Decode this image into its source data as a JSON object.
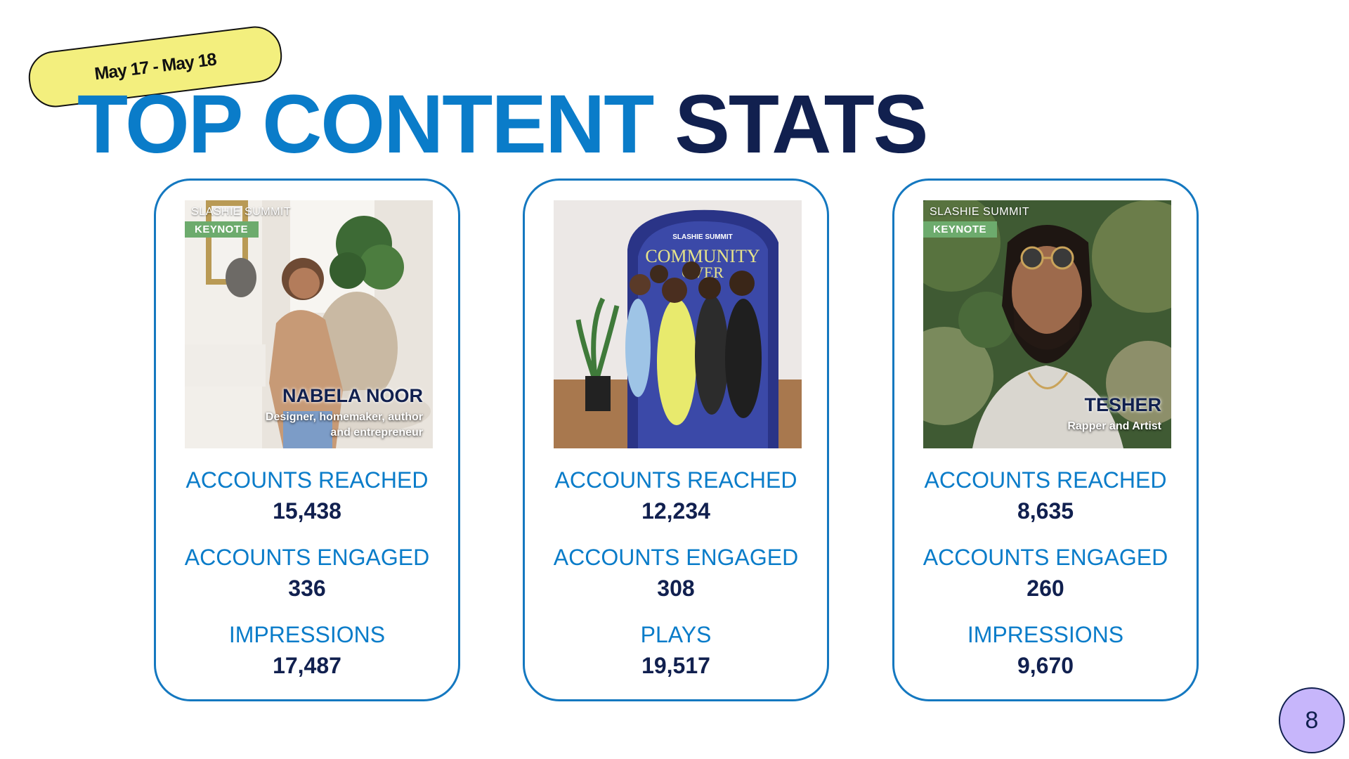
{
  "date_range": "May 17 - May 18",
  "title": {
    "part1": "TOP CONTENT",
    "part2": "STATS"
  },
  "cards": [
    {
      "photo": {
        "brand": "SLASHIE SUMMIT",
        "tag": "KEYNOTE",
        "name": "NABELA NOOR",
        "subtitle_line1": "Designer, homemaker, author",
        "subtitle_line2": "and entrepreneur"
      },
      "stats": [
        {
          "label": "ACCOUNTS REACHED",
          "value": "15,438"
        },
        {
          "label": "ACCOUNTS ENGAGED",
          "value": "336"
        },
        {
          "label": "IMPRESSIONS",
          "value": "17,487"
        }
      ]
    },
    {
      "photo": {
        "backdrop_small": "SLASHIE SUMMIT",
        "backdrop_big": "COMMUNITY",
        "backdrop_big2": "OVER"
      },
      "stats": [
        {
          "label": "ACCOUNTS REACHED",
          "value": "12,234"
        },
        {
          "label": "ACCOUNTS ENGAGED",
          "value": "308"
        },
        {
          "label": "PLAYS",
          "value": "19,517"
        }
      ]
    },
    {
      "photo": {
        "brand": "SLASHIE SUMMIT",
        "tag": "KEYNOTE",
        "name": "TESHER",
        "subtitle_line1": "Rapper and Artist"
      },
      "stats": [
        {
          "label": "ACCOUNTS REACHED",
          "value": "8,635"
        },
        {
          "label": "ACCOUNTS ENGAGED",
          "value": "260"
        },
        {
          "label": "IMPRESSIONS",
          "value": "9,670"
        }
      ]
    }
  ],
  "page_number": "8",
  "colors": {
    "brand_blue": "#0a7cc9",
    "navy": "#11204f",
    "pill_yellow": "#f3ef7e",
    "keynote_green": "#6dab6d",
    "badge_purple": "#c7b6fb"
  }
}
